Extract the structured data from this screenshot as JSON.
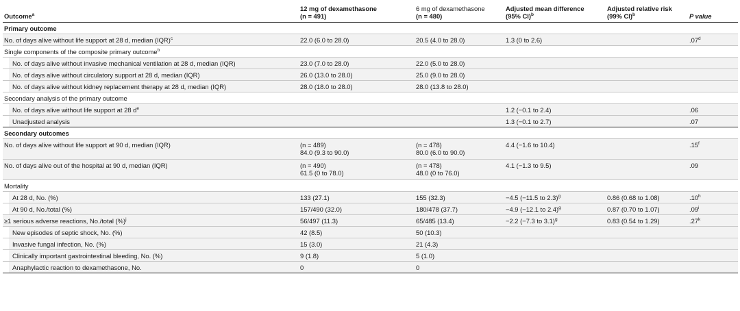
{
  "headers": {
    "outcome": "Outcome",
    "outcome_sup": "a",
    "dex12": "12 mg of dexamethasone",
    "dex12_n": "(n = 491)",
    "dex6": "6 mg of dexamethasone",
    "dex6_n": "(n = 480)",
    "amd": "Adjusted mean difference",
    "amd_ci": "(95% CI)",
    "amd_sup": "b",
    "arr": "Adjusted relative risk",
    "arr_ci": "(99% CI)",
    "arr_sup": "b",
    "p": "P value"
  },
  "rows": {
    "r1": {
      "label": "Primary outcome"
    },
    "r2": {
      "label": "No. of days alive without life support at 28 d, median (IQR)",
      "sup": "c",
      "v12": "22.0 (6.0 to 28.0)",
      "v6": "20.5 (4.0 to 28.0)",
      "amd": "1.3 (0 to 2.6)",
      "arr": "",
      "p": ".07",
      "p_sup": "d"
    },
    "r3": {
      "label": "Single components of the composite primary outcome",
      "sup": "b"
    },
    "r4": {
      "label": "No. of days alive without invasive mechanical ventilation at 28 d, median (IQR)",
      "v12": "23.0 (7.0 to 28.0)",
      "v6": "22.0 (5.0 to 28.0)"
    },
    "r5": {
      "label": "No. of days alive without circulatory support at 28 d, median (IQR)",
      "v12": "26.0 (13.0 to 28.0)",
      "v6": "25.0 (9.0 to 28.0)"
    },
    "r6": {
      "label": "No. of days alive without kidney replacement therapy at 28 d, median (IQR)",
      "v12": "28.0 (18.0 to 28.0)",
      "v6": "28.0 (13.8 to 28.0)"
    },
    "r7": {
      "label": "Secondary analysis of the primary outcome"
    },
    "r8": {
      "label": "No. of days alive without life support at 28 d",
      "sup": "e",
      "amd": "1.2 (−0.1 to 2.4)",
      "p": ".06"
    },
    "r9": {
      "label": "Unadjusted analysis",
      "amd": "1.3 (−0.1 to 2.7)",
      "p": ".07"
    },
    "r10": {
      "label": "Secondary outcomes"
    },
    "r11": {
      "label": "No. of days alive without life support at 90 d, median (IQR)",
      "v12_n": "(n = 489)",
      "v12": "84.0 (9.3 to 90.0)",
      "v6_n": "(n = 478)",
      "v6": "80.0 (6.0 to 90.0)",
      "amd": "4.4 (−1.6 to 10.4)",
      "p": ".15",
      "p_sup": "f"
    },
    "r12": {
      "label": "No. of days alive out of the hospital at 90 d, median (IQR)",
      "v12_n": "(n = 490)",
      "v12": "61.5 (0 to 78.0)",
      "v6_n": "(n = 478)",
      "v6": "48.0 (0 to 76.0)",
      "amd": "4.1 (−1.3 to 9.5)",
      "p": ".09"
    },
    "r13": {
      "label": "Mortality"
    },
    "r14": {
      "label": "At 28 d, No. (%)",
      "v12": "133 (27.1)",
      "v6": "155 (32.3)",
      "amd": "−4.5 (−11.5 to 2.3)",
      "amd_sup": "g",
      "arr": "0.86 (0.68 to 1.08)",
      "p": ".10",
      "p_sup": "h"
    },
    "r15": {
      "label": "At 90 d, No./total (%)",
      "v12": "157/490 (32.0)",
      "v6": "180/478 (37.7)",
      "amd": "−4.9 (−12.1 to 2.4)",
      "amd_sup": "g",
      "arr": "0.87 (0.70 to 1.07)",
      "p": ".09",
      "p_sup": "i"
    },
    "r16": {
      "label": "≥1 serious adverse reactions, No./total (%)",
      "sup": "j",
      "v12": "56/497 (11.3)",
      "v6": "65/485 (13.4)",
      "amd": "−2.2 (−7.3 to 3.1)",
      "amd_sup": "g",
      "arr": "0.83 (0.54 to 1.29)",
      "p": ".27",
      "p_sup": "k"
    },
    "r17": {
      "label": "New episodes of septic shock, No. (%)",
      "v12": "42 (8.5)",
      "v6": "50 (10.3)"
    },
    "r18": {
      "label": "Invasive fungal infection, No. (%)",
      "v12": "15 (3.0)",
      "v6": "21 (4.3)"
    },
    "r19": {
      "label": "Clinically important gastrointestinal bleeding, No. (%)",
      "v12": "9 (1.8)",
      "v6": "5 (1.0)"
    },
    "r20": {
      "label": "Anaphylactic reaction to dexamethasone, No.",
      "v12": "0",
      "v6": "0"
    }
  }
}
